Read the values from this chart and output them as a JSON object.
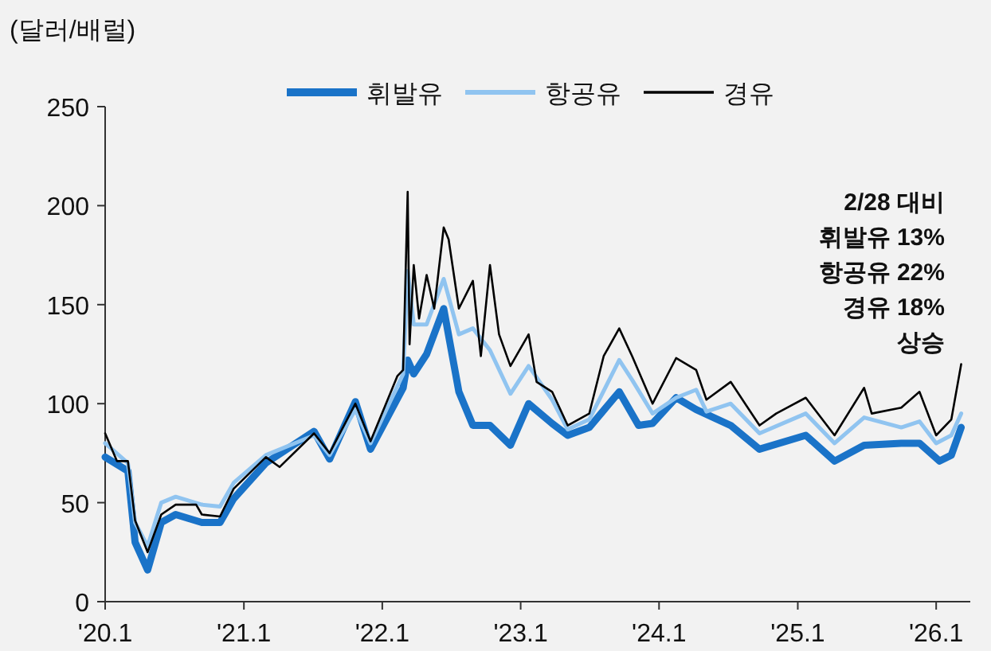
{
  "chart_data": {
    "type": "line",
    "ylabel": "(달러/배럴)",
    "legend": "top",
    "xlim": [
      "2020-01-01",
      "2026-04-01"
    ],
    "xticks": [
      {
        "value": "2020-01-01",
        "label": "'20.1"
      },
      {
        "value": "2021-01-01",
        "label": "'21.1"
      },
      {
        "value": "2022-01-01",
        "label": "'22.1"
      },
      {
        "value": "2023-01-01",
        "label": "'23.1"
      },
      {
        "value": "2024-01-01",
        "label": "'24.1"
      },
      {
        "value": "2025-01-01",
        "label": "'25.1"
      },
      {
        "value": "2026-01-01",
        "label": "'26.1"
      }
    ],
    "ylim": [
      0,
      250
    ],
    "yticks": [
      0,
      50,
      100,
      150,
      200,
      250
    ],
    "annotations": [
      "2/28 대비",
      "휘발유 13%",
      "항공유 22%",
      "경유 18%",
      "상승"
    ],
    "series": [
      {
        "name": "휘발유",
        "color": "#1a73c8",
        "x": [
          "2020-01-01",
          "2020-03-01",
          "2020-03-20",
          "2020-04-22",
          "2020-05-28",
          "2020-07-05",
          "2020-09-12",
          "2020-10-30",
          "2020-12-05",
          "2021-02-28",
          "2021-07-05",
          "2021-08-15",
          "2021-10-22",
          "2021-12-01",
          "2022-02-25",
          "2022-03-09",
          "2022-03-25",
          "2022-04-28",
          "2022-06-12",
          "2022-07-22",
          "2022-08-28",
          "2022-10-12",
          "2022-12-05",
          "2023-01-22",
          "2023-03-25",
          "2023-05-05",
          "2023-07-01",
          "2023-09-18",
          "2023-11-08",
          "2023-12-15",
          "2024-02-15",
          "2024-04-08",
          "2024-07-08",
          "2024-09-22",
          "2025-01-22",
          "2025-04-08",
          "2025-06-25",
          "2025-10-01",
          "2025-11-18",
          "2026-01-10",
          "2026-02-10",
          "2026-03-08"
        ],
        "values": [
          73,
          66,
          30,
          16,
          40,
          44,
          40,
          40,
          52,
          70,
          86,
          72,
          101,
          77,
          108,
          122,
          115,
          125,
          148,
          106,
          89,
          89,
          79,
          100,
          90,
          84,
          88,
          106,
          89,
          90,
          103,
          97,
          89,
          77,
          84,
          71,
          79,
          80,
          80,
          71,
          74,
          88
        ]
      },
      {
        "name": "항공유",
        "color": "#90c4f0",
        "x": [
          "2020-01-01",
          "2020-03-01",
          "2020-03-20",
          "2020-04-22",
          "2020-05-28",
          "2020-07-05",
          "2020-09-12",
          "2020-10-30",
          "2020-12-05",
          "2021-02-28",
          "2021-07-05",
          "2021-08-15",
          "2021-10-22",
          "2021-12-01",
          "2022-02-25",
          "2022-03-09",
          "2022-03-25",
          "2022-04-28",
          "2022-06-12",
          "2022-07-22",
          "2022-08-28",
          "2022-10-12",
          "2022-12-05",
          "2023-01-22",
          "2023-03-25",
          "2023-05-05",
          "2023-07-01",
          "2023-09-18",
          "2023-10-22",
          "2023-12-15",
          "2024-02-15",
          "2024-04-08",
          "2024-05-05",
          "2024-07-08",
          "2024-09-22",
          "2025-01-22",
          "2025-04-08",
          "2025-06-25",
          "2025-10-01",
          "2025-11-18",
          "2026-01-01",
          "2026-02-10",
          "2026-03-08"
        ],
        "values": [
          80,
          70,
          40,
          28,
          50,
          53,
          49,
          48,
          60,
          74,
          84,
          74,
          97,
          80,
          115,
          167,
          140,
          140,
          163,
          135,
          138,
          127,
          105,
          119,
          102,
          87,
          92,
          122,
          112,
          95,
          103,
          107,
          96,
          100,
          85,
          95,
          80,
          93,
          88,
          91,
          80,
          84,
          95
        ]
      },
      {
        "name": "경유",
        "color": "#000000",
        "x": [
          "2020-01-01",
          "2020-02-01",
          "2020-03-01",
          "2020-03-20",
          "2020-04-22",
          "2020-05-28",
          "2020-07-05",
          "2020-08-28",
          "2020-09-12",
          "2020-10-30",
          "2020-12-05",
          "2021-02-28",
          "2021-04-05",
          "2021-07-05",
          "2021-08-15",
          "2021-10-22",
          "2021-12-01",
          "2022-02-10",
          "2022-02-25",
          "2022-03-09",
          "2022-03-14",
          "2022-03-25",
          "2022-04-08",
          "2022-04-28",
          "2022-05-18",
          "2022-06-12",
          "2022-06-25",
          "2022-07-22",
          "2022-08-28",
          "2022-09-18",
          "2022-10-12",
          "2022-11-05",
          "2022-12-05",
          "2023-01-22",
          "2023-02-12",
          "2023-03-25",
          "2023-05-05",
          "2023-07-01",
          "2023-08-08",
          "2023-09-18",
          "2023-10-22",
          "2023-12-15",
          "2024-02-15",
          "2024-04-08",
          "2024-05-05",
          "2024-07-08",
          "2024-09-22",
          "2024-11-05",
          "2025-01-22",
          "2025-04-08",
          "2025-06-25",
          "2025-07-15",
          "2025-10-01",
          "2025-11-18",
          "2026-01-01",
          "2026-02-10",
          "2026-03-08"
        ],
        "values": [
          85,
          71,
          71,
          41,
          25,
          44,
          49,
          49,
          44,
          43,
          57,
          73,
          68,
          85,
          75,
          100,
          81,
          114,
          117,
          207,
          130,
          170,
          143,
          165,
          148,
          189,
          183,
          148,
          162,
          124,
          170,
          135,
          119,
          135,
          111,
          106,
          89,
          95,
          124,
          138,
          124,
          100,
          123,
          117,
          102,
          111,
          89,
          95,
          103,
          84,
          108,
          95,
          98,
          106,
          84,
          92,
          120
        ]
      }
    ]
  }
}
